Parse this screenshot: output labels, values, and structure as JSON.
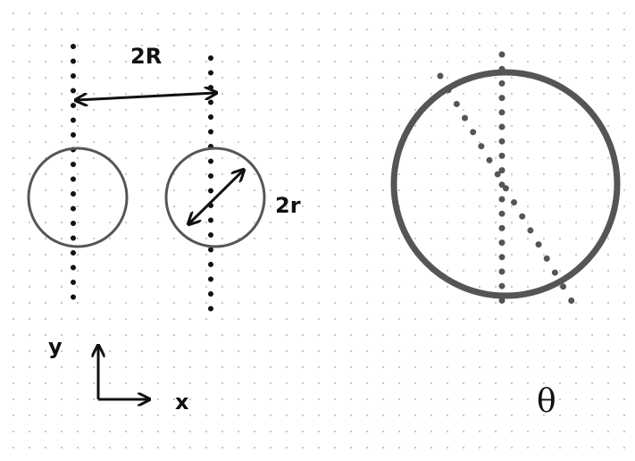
{
  "labels": {
    "two_R": "2R",
    "two_r": "2r",
    "axis_y": "y",
    "axis_x": "x",
    "theta": "θ"
  },
  "colors": {
    "ink": "#111111",
    "circle": "#555555",
    "grid_dot": "#c9c9c9"
  },
  "icons": {
    "axes": "xy-axes-icon"
  }
}
